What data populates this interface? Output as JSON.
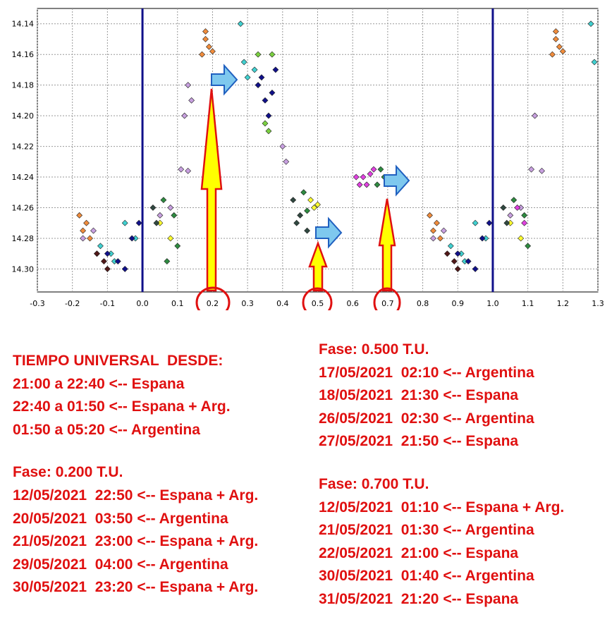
{
  "chart_data": {
    "type": "scatter",
    "xlim": [
      -0.3,
      1.3
    ],
    "ylim": [
      14.13,
      14.315
    ],
    "y_inverted": true,
    "grid": true,
    "x_ticks": [
      "-0.3",
      "-0.2",
      "-0.1",
      "0.0",
      "0.1",
      "0.2",
      "0.3",
      "0.4",
      "0.5",
      "0.6",
      "0.7",
      "0.8",
      "0.9",
      "1.0",
      "1.1",
      "1.2",
      "1.3"
    ],
    "y_ticks": [
      "14.14",
      "14.16",
      "14.18",
      "14.20",
      "14.22",
      "14.24",
      "14.26",
      "14.28",
      "14.30"
    ],
    "reference_lines_x": [
      0.0,
      1.0
    ],
    "highlighted_phases": [
      0.2,
      0.5,
      0.7
    ],
    "series": [
      {
        "color": "#f08c3c",
        "points": [
          [
            -0.18,
            14.265
          ],
          [
            -0.17,
            14.275
          ],
          [
            -0.16,
            14.27
          ],
          [
            -0.15,
            14.28
          ],
          [
            0.18,
            14.15
          ],
          [
            0.19,
            14.155
          ],
          [
            0.17,
            14.16
          ],
          [
            0.18,
            14.145
          ],
          [
            0.2,
            14.158
          ],
          [
            0.82,
            14.265
          ],
          [
            0.83,
            14.275
          ],
          [
            0.84,
            14.27
          ],
          [
            0.85,
            14.28
          ],
          [
            1.18,
            14.15
          ],
          [
            1.19,
            14.155
          ],
          [
            1.17,
            14.16
          ],
          [
            1.18,
            14.145
          ],
          [
            1.2,
            14.158
          ]
        ]
      },
      {
        "color": "#40d0d0",
        "points": [
          [
            -0.12,
            14.285
          ],
          [
            -0.09,
            14.29
          ],
          [
            -0.08,
            14.295
          ],
          [
            -0.05,
            14.27
          ],
          [
            -0.02,
            14.28
          ],
          [
            0.28,
            14.14
          ],
          [
            0.29,
            14.165
          ],
          [
            0.3,
            14.175
          ],
          [
            0.32,
            14.17
          ],
          [
            0.88,
            14.285
          ],
          [
            0.91,
            14.29
          ],
          [
            0.92,
            14.295
          ],
          [
            0.95,
            14.27
          ],
          [
            0.98,
            14.28
          ],
          [
            1.28,
            14.14
          ],
          [
            1.29,
            14.165
          ]
        ]
      },
      {
        "color": "#10108a",
        "points": [
          [
            -0.1,
            14.29
          ],
          [
            -0.07,
            14.295
          ],
          [
            -0.05,
            14.3
          ],
          [
            -0.03,
            14.28
          ],
          [
            -0.01,
            14.27
          ],
          [
            0.33,
            14.18
          ],
          [
            0.35,
            14.19
          ],
          [
            0.36,
            14.2
          ],
          [
            0.37,
            14.185
          ],
          [
            0.34,
            14.175
          ],
          [
            0.38,
            14.17
          ],
          [
            0.9,
            14.29
          ],
          [
            0.93,
            14.295
          ],
          [
            0.95,
            14.3
          ],
          [
            0.97,
            14.28
          ],
          [
            0.99,
            14.27
          ]
        ]
      },
      {
        "color": "#c8a0e0",
        "points": [
          [
            -0.17,
            14.28
          ],
          [
            -0.14,
            14.275
          ],
          [
            -0.13,
            14.29
          ],
          [
            0.05,
            14.265
          ],
          [
            0.08,
            14.26
          ],
          [
            0.12,
            14.2
          ],
          [
            0.13,
            14.18
          ],
          [
            0.14,
            14.19
          ],
          [
            0.11,
            14.235
          ],
          [
            0.13,
            14.236
          ],
          [
            0.4,
            14.22
          ],
          [
            0.41,
            14.23
          ],
          [
            0.83,
            14.28
          ],
          [
            0.86,
            14.275
          ],
          [
            1.05,
            14.265
          ],
          [
            1.08,
            14.26
          ],
          [
            1.12,
            14.2
          ],
          [
            1.11,
            14.235
          ],
          [
            1.14,
            14.236
          ]
        ]
      },
      {
        "color": "#501818",
        "points": [
          [
            -0.13,
            14.29
          ],
          [
            -0.11,
            14.295
          ],
          [
            -0.1,
            14.3
          ],
          [
            0.87,
            14.29
          ],
          [
            0.89,
            14.295
          ],
          [
            0.9,
            14.3
          ]
        ]
      },
      {
        "color": "#ffff30",
        "points": [
          [
            0.05,
            14.27
          ],
          [
            0.08,
            14.28
          ],
          [
            0.48,
            14.255
          ],
          [
            0.49,
            14.26
          ],
          [
            0.5,
            14.258
          ],
          [
            1.05,
            14.27
          ],
          [
            1.08,
            14.28
          ]
        ]
      },
      {
        "color": "#2e8b40",
        "points": [
          [
            0.06,
            14.255
          ],
          [
            0.09,
            14.265
          ],
          [
            0.1,
            14.285
          ],
          [
            0.07,
            14.295
          ],
          [
            0.46,
            14.25
          ],
          [
            0.47,
            14.262
          ],
          [
            0.67,
            14.245
          ],
          [
            0.68,
            14.235
          ],
          [
            0.69,
            14.24
          ],
          [
            1.06,
            14.255
          ],
          [
            1.09,
            14.265
          ],
          [
            1.1,
            14.285
          ]
        ]
      },
      {
        "color": "#e040e0",
        "points": [
          [
            0.63,
            14.24
          ],
          [
            0.64,
            14.245
          ],
          [
            0.65,
            14.238
          ],
          [
            0.66,
            14.235
          ],
          [
            0.62,
            14.245
          ],
          [
            0.61,
            14.24
          ],
          [
            1.07,
            14.26
          ],
          [
            1.09,
            14.27
          ]
        ]
      },
      {
        "color": "#7ad040",
        "points": [
          [
            0.35,
            14.205
          ],
          [
            0.36,
            14.21
          ],
          [
            0.37,
            14.16
          ],
          [
            0.33,
            14.16
          ]
        ]
      },
      {
        "color": "#304840",
        "points": [
          [
            0.43,
            14.255
          ],
          [
            0.45,
            14.265
          ],
          [
            0.47,
            14.275
          ],
          [
            0.44,
            14.27
          ],
          [
            0.03,
            14.26
          ],
          [
            0.04,
            14.27
          ],
          [
            1.03,
            14.26
          ],
          [
            1.04,
            14.27
          ]
        ]
      }
    ]
  },
  "annotations": {
    "left_block": [
      "TIEMPO UNIVERSAL  DESDE:",
      "21:00 a 22:40 <-- Espana",
      "22:40 a 01:50 <-- Espana + Arg.",
      "01:50 a 05:20 <-- Argentina",
      "",
      "Fase: 0.200 T.U.",
      "12/05/2021  22:50 <-- Espana + Arg.",
      "20/05/2021  03:50 <-- Argentina",
      "21/05/2021  23:00 <-- Espana + Arg.",
      "29/05/2021  04:00 <-- Argentina",
      "30/05/2021  23:20 <-- Espana + Arg."
    ],
    "right_block": [
      "Fase: 0.500 T.U.",
      "17/05/2021  02:10 <-- Argentina",
      "18/05/2021  21:30 <-- Espana",
      "26/05/2021  02:30 <-- Argentina",
      "27/05/2021  21:50 <-- Espana",
      "",
      "Fase: 0.700 T.U.",
      "12/05/2021  01:10 <-- Espana + Arg.",
      "21/05/2021  01:30 <-- Argentina",
      "22/05/2021  21:00 <-- Espana",
      "30/05/2021  01:40 <-- Argentina",
      "31/05/2021  21:20 <-- Espana"
    ]
  },
  "colors": {
    "reference_line": "#10108a",
    "arrow_fill": "#ffff00",
    "arrow_stroke": "#e01010",
    "circle_stroke": "#e01010",
    "right_arrow_fill": "#7ec8ee",
    "right_arrow_stroke": "#2060c0",
    "annotation_text": "#e01010"
  }
}
